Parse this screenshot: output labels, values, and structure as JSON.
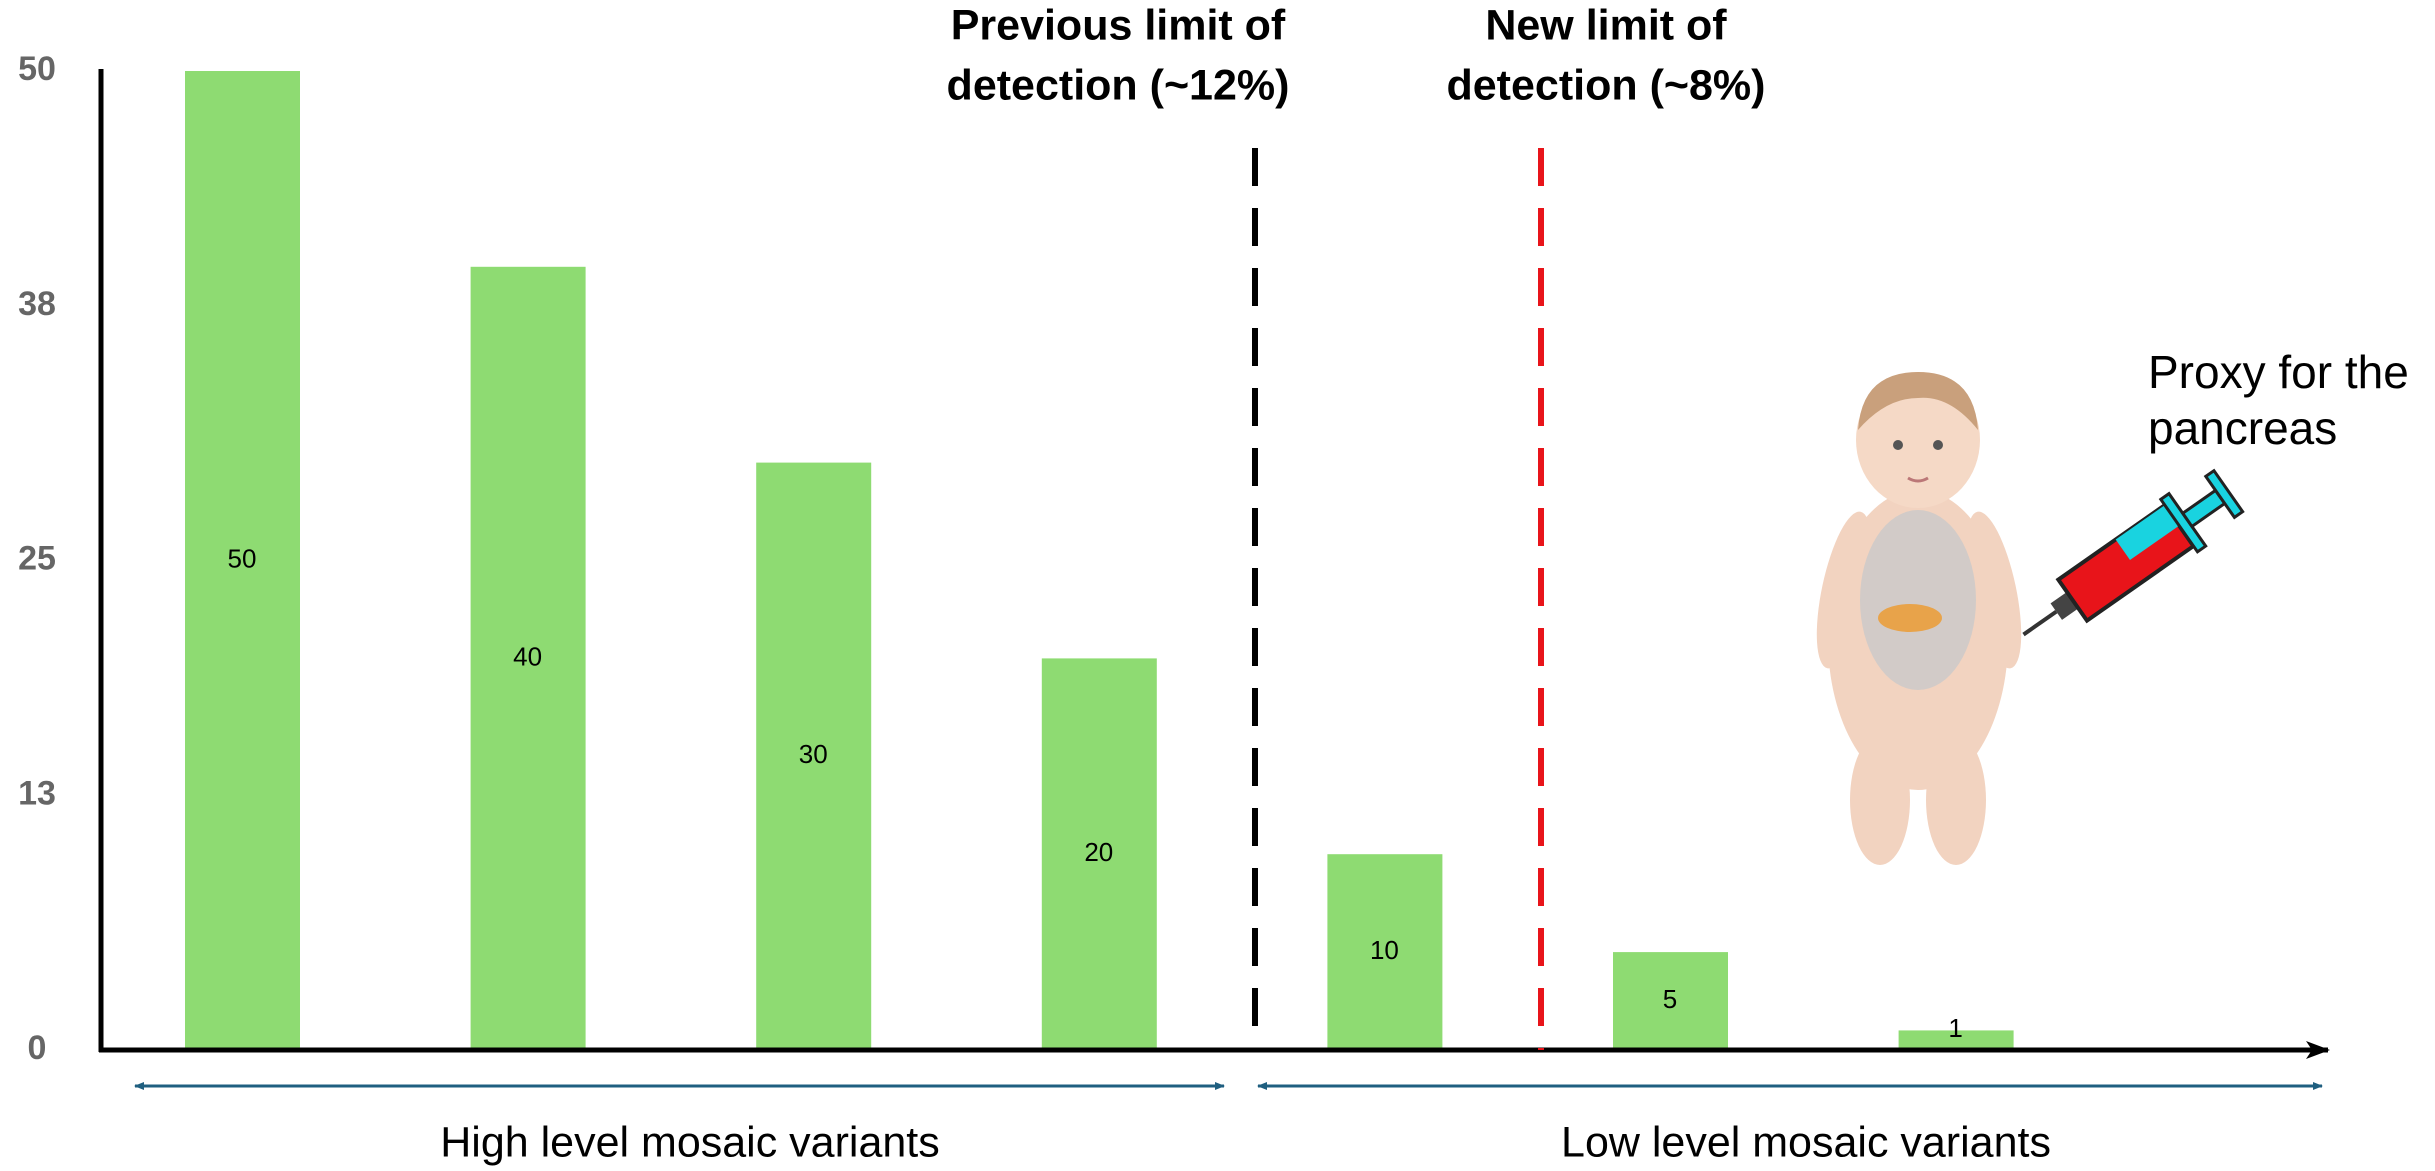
{
  "chart_data": {
    "type": "bar",
    "categories": [
      null,
      null,
      null,
      null,
      null,
      null,
      null
    ],
    "values": [
      50,
      40,
      30,
      20,
      10,
      5,
      1
    ],
    "color": "#8edb72",
    "ylim": [
      0,
      50
    ],
    "yticks": [
      0,
      13,
      25,
      38,
      50
    ],
    "grid": false,
    "annotations": [
      {
        "text": [
          "Previous limit of",
          "detection (~12%)"
        ],
        "color": "#000000"
      },
      {
        "text": [
          "New limit of",
          "detection (~8%)"
        ],
        "color": "#e8141a"
      }
    ],
    "group_labels": [
      "High level mosaic variants",
      "Low level mosaic variants"
    ],
    "image_caption": [
      "Proxy for the",
      "pancreas"
    ]
  }
}
